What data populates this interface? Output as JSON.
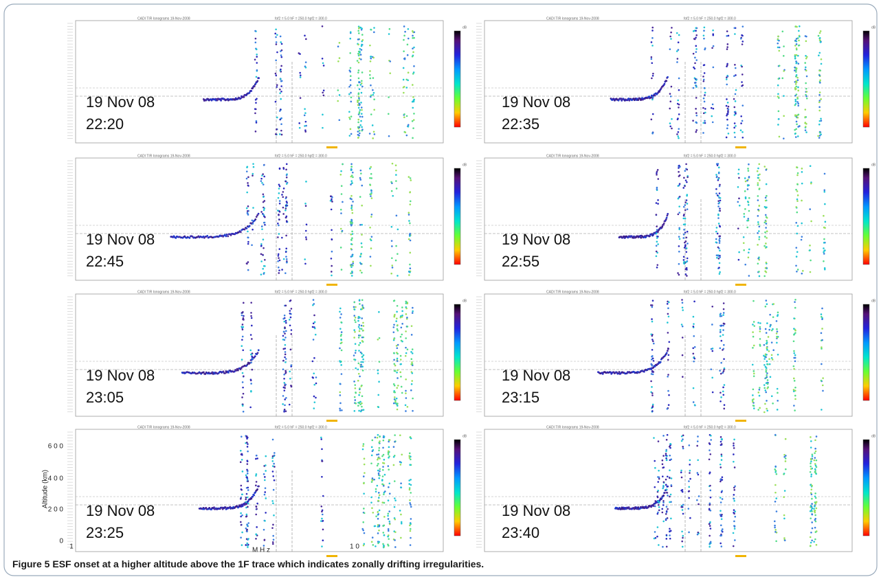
{
  "figure": {
    "caption_label": "Figure 5",
    "caption_text": "ESF onset at a higher altitude above the 1F trace which indicates zonally drifting irregularities.",
    "panel_header": "CADI TIR Ionograms    19-Nov-2008",
    "panel_params": "fof2 =  5.0   hF =  250.0   hpf2 =  300.0",
    "colorbar_unit": "dB"
  },
  "panels": [
    {
      "date": "19 Nov 08",
      "time": "22:20"
    },
    {
      "date": "19 Nov 08",
      "time": "22:35"
    },
    {
      "date": "19 Nov 08",
      "time": "22:45"
    },
    {
      "date": "19 Nov 08",
      "time": "22:55"
    },
    {
      "date": "19 Nov 08",
      "time": "23:05"
    },
    {
      "date": "19 Nov 08",
      "time": "23:15"
    },
    {
      "date": "19 Nov 08",
      "time": "23:25"
    },
    {
      "date": "19 Nov 08",
      "time": "23:40"
    }
  ],
  "axes": {
    "y_label": "Altitude (km)",
    "y_ticks": [
      "6 0 0",
      "4 0 0",
      "2 0 0",
      "0"
    ],
    "x_label": "M H z",
    "x_ticks": [
      "1",
      "1 0"
    ]
  }
}
